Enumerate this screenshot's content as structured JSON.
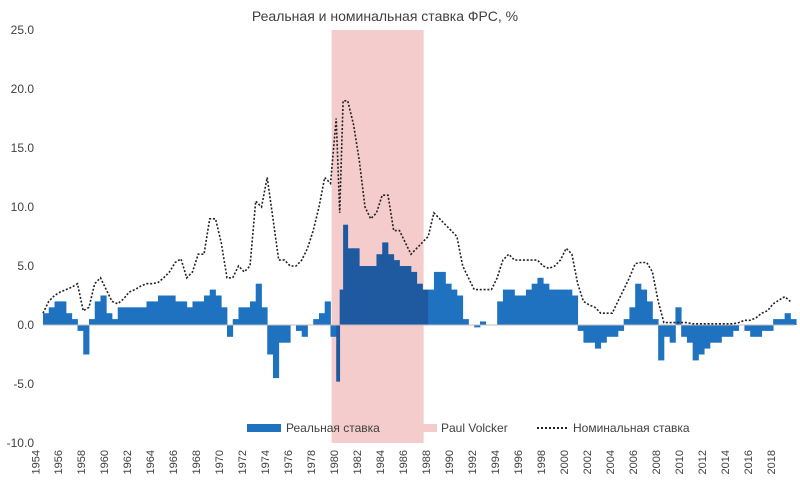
{
  "chart_data": {
    "type": "bar",
    "title": "Реальная и номинальная ставка ФРС, %",
    "xlabel": "",
    "ylabel": "",
    "xlim": [
      1954.5,
      2019.9
    ],
    "ylim": [
      -10,
      25
    ],
    "y_ticks": [
      "25.0",
      "20.0",
      "15.0",
      "10.0",
      "5.0",
      "0.0",
      "-5.0",
      "-10.0"
    ],
    "x_ticks": [
      "1954",
      "1956",
      "1958",
      "1960",
      "1962",
      "1964",
      "1966",
      "1968",
      "1970",
      "1972",
      "1974",
      "1976",
      "1978",
      "1980",
      "1982",
      "1984",
      "1986",
      "1988",
      "1990",
      "1992",
      "1994",
      "1996",
      "1998",
      "2000",
      "2002",
      "2004",
      "2006",
      "2008",
      "2010",
      "2012",
      "2014",
      "2016",
      "2018"
    ],
    "gridlines": false,
    "legend_position": "bottom",
    "legend": [
      "Реальная ставка",
      "Paul Volcker",
      "Номинальная ставка"
    ],
    "highlight": {
      "name": "Paul Volcker",
      "start": 1979.6,
      "end": 1987.6,
      "color": "#f4cccc"
    },
    "series": [
      {
        "name": "Реальная ставка",
        "type": "bar",
        "color": "#1f72c0",
        "color_in_highlight": "#1f5aa0",
        "x": [
          1954.5,
          1955,
          1955.5,
          1956,
          1956.5,
          1957,
          1957.5,
          1958,
          1958.5,
          1959,
          1959.5,
          1960,
          1960.5,
          1961,
          1961.5,
          1962,
          1962.5,
          1963,
          1963.5,
          1964,
          1964.5,
          1965,
          1965.5,
          1966,
          1966.5,
          1967,
          1967.5,
          1968,
          1968.5,
          1969,
          1969.5,
          1970,
          1970.5,
          1971,
          1971.5,
          1972,
          1972.5,
          1973,
          1973.5,
          1974,
          1974.5,
          1975,
          1975.5,
          1976,
          1976.5,
          1977,
          1977.5,
          1978,
          1978.5,
          1979,
          1979.5,
          1980,
          1980.3,
          1980.6,
          1981,
          1981.5,
          1982,
          1982.5,
          1983,
          1983.5,
          1984,
          1984.5,
          1985,
          1985.5,
          1986,
          1986.5,
          1987,
          1987.5,
          1988,
          1988.5,
          1989,
          1989.5,
          1990,
          1990.5,
          1991,
          1991.5,
          1992,
          1992.5,
          1993,
          1993.5,
          1994,
          1994.5,
          1995,
          1995.5,
          1996,
          1996.5,
          1997,
          1997.5,
          1998,
          1998.5,
          1999,
          1999.5,
          2000,
          2000.5,
          2001,
          2001.5,
          2002,
          2002.5,
          2003,
          2003.5,
          2004,
          2004.5,
          2005,
          2005.5,
          2006,
          2006.5,
          2007,
          2007.5,
          2008,
          2008.5,
          2009,
          2009.5,
          2010,
          2010.5,
          2011,
          2011.5,
          2012,
          2012.5,
          2013,
          2013.5,
          2014,
          2014.5,
          2015,
          2015.5,
          2016,
          2016.5,
          2017,
          2017.5,
          2018,
          2018.5,
          2019,
          2019.5
        ],
        "values": [
          1.0,
          1.5,
          2.0,
          2.0,
          1.0,
          0.5,
          -0.5,
          -2.5,
          0.5,
          2.0,
          2.5,
          1.0,
          0.5,
          1.5,
          1.5,
          1.5,
          1.5,
          1.5,
          2.0,
          2.0,
          2.5,
          2.5,
          2.5,
          2.0,
          2.0,
          1.5,
          2.0,
          2.0,
          2.5,
          3.0,
          2.5,
          1.5,
          -1.0,
          0.5,
          1.5,
          1.5,
          2.0,
          3.5,
          1.5,
          -2.5,
          -4.5,
          -1.5,
          -1.5,
          0.0,
          -0.5,
          -1.0,
          0.0,
          0.5,
          1.0,
          2.0,
          -1.0,
          -4.8,
          3.0,
          8.5,
          6.5,
          6.5,
          5.0,
          5.0,
          5.0,
          6.0,
          7.0,
          6.0,
          5.5,
          5.0,
          5.0,
          4.5,
          3.5,
          3.0,
          3.0,
          4.5,
          4.5,
          3.5,
          3.0,
          2.5,
          0.5,
          0.0,
          -0.2,
          0.3,
          0.0,
          0.0,
          2.0,
          3.0,
          3.0,
          2.5,
          2.5,
          3.0,
          3.5,
          4.0,
          3.5,
          3.0,
          3.0,
          3.0,
          3.0,
          2.5,
          -0.5,
          -1.5,
          -1.5,
          -2.0,
          -1.5,
          -1.0,
          -1.0,
          -0.5,
          0.5,
          1.5,
          3.5,
          3.0,
          2.0,
          0.5,
          -3.0,
          -1.0,
          -1.5,
          1.5,
          -1.0,
          -1.5,
          -3.0,
          -2.5,
          -2.0,
          -1.5,
          -1.5,
          -1.0,
          -1.0,
          -0.5,
          0.0,
          -0.5,
          -1.0,
          -1.0,
          -0.5,
          -0.5,
          0.5,
          0.5,
          1.0,
          0.5
        ]
      },
      {
        "name": "Номинальная ставка",
        "type": "line",
        "style": "dotted",
        "color": "#222222",
        "x": [
          1954.5,
          1955,
          1955.5,
          1956,
          1956.5,
          1957,
          1957.5,
          1958,
          1958.5,
          1959,
          1959.5,
          1960,
          1960.5,
          1961,
          1961.5,
          1962,
          1962.5,
          1963,
          1963.5,
          1964,
          1964.5,
          1965,
          1965.5,
          1966,
          1966.5,
          1967,
          1967.5,
          1968,
          1968.5,
          1969,
          1969.5,
          1970,
          1970.5,
          1971,
          1971.5,
          1972,
          1972.5,
          1973,
          1973.5,
          1974,
          1974.5,
          1975,
          1975.5,
          1976,
          1976.5,
          1977,
          1977.5,
          1978,
          1978.5,
          1979,
          1979.5,
          1980,
          1980.3,
          1980.6,
          1981,
          1981.5,
          1982,
          1982.5,
          1983,
          1983.5,
          1984,
          1984.5,
          1985,
          1985.5,
          1986,
          1986.5,
          1987,
          1987.5,
          1988,
          1988.5,
          1989,
          1989.5,
          1990,
          1990.5,
          1991,
          1991.5,
          1992,
          1992.5,
          1993,
          1993.5,
          1994,
          1994.5,
          1995,
          1995.5,
          1996,
          1996.5,
          1997,
          1997.5,
          1998,
          1998.5,
          1999,
          1999.5,
          2000,
          2000.5,
          2001,
          2001.5,
          2002,
          2002.5,
          2003,
          2003.5,
          2004,
          2004.5,
          2005,
          2005.5,
          2006,
          2006.5,
          2007,
          2007.5,
          2008,
          2008.5,
          2009,
          2009.5,
          2010,
          2010.5,
          2011,
          2011.5,
          2012,
          2012.5,
          2013,
          2013.5,
          2014,
          2014.5,
          2015,
          2015.5,
          2016,
          2016.5,
          2017,
          2017.5,
          2018,
          2018.5,
          2019,
          2019.5
        ],
        "values": [
          1.0,
          2.0,
          2.5,
          2.8,
          3.0,
          3.2,
          3.5,
          1.2,
          1.5,
          3.5,
          4.0,
          3.0,
          2.0,
          1.8,
          2.2,
          2.8,
          3.0,
          3.3,
          3.5,
          3.5,
          3.6,
          4.0,
          4.5,
          5.3,
          5.6,
          4.0,
          4.5,
          6.0,
          6.0,
          9.0,
          9.0,
          7.0,
          4.0,
          4.0,
          5.0,
          4.5,
          5.0,
          10.5,
          10.0,
          12.5,
          9.0,
          5.5,
          5.5,
          5.0,
          5.0,
          5.5,
          6.5,
          8.0,
          10.0,
          12.5,
          12.0,
          17.5,
          9.5,
          19.0,
          19.0,
          17.0,
          14.0,
          10.0,
          9.0,
          9.5,
          11.0,
          11.0,
          8.0,
          8.0,
          7.0,
          6.0,
          6.5,
          7.0,
          7.5,
          9.5,
          9.0,
          8.5,
          8.0,
          7.5,
          5.0,
          4.0,
          3.0,
          3.0,
          3.0,
          3.0,
          4.0,
          5.5,
          6.0,
          5.5,
          5.5,
          5.5,
          5.5,
          5.5,
          5.0,
          4.8,
          5.0,
          5.5,
          6.5,
          6.0,
          3.5,
          2.0,
          1.7,
          1.5,
          1.0,
          1.0,
          1.0,
          2.0,
          3.0,
          4.0,
          5.2,
          5.3,
          5.3,
          4.5,
          2.0,
          0.2,
          0.2,
          0.2,
          0.2,
          0.2,
          0.1,
          0.1,
          0.1,
          0.1,
          0.1,
          0.1,
          0.1,
          0.1,
          0.2,
          0.4,
          0.4,
          0.6,
          1.0,
          1.2,
          1.8,
          2.1,
          2.4,
          2.0
        ]
      }
    ]
  }
}
